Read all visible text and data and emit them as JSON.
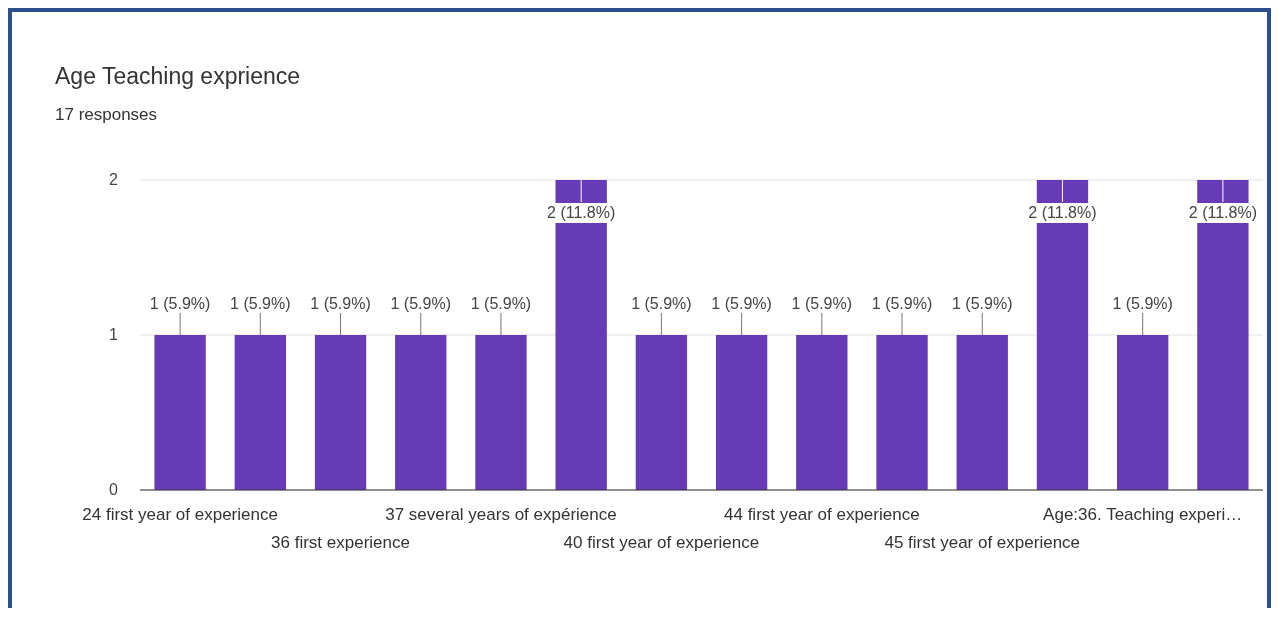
{
  "chart_data": {
    "type": "bar",
    "title": "Age Teaching exprience",
    "subtitle": "17 responses",
    "categories": [
      "24 first year of experience",
      null,
      "36 first experience",
      null,
      "37 several years of expérience",
      null,
      "40 first year of experience",
      null,
      "44 first year of experience",
      null,
      "45 first year of experience",
      null,
      "Age:36. Teaching experi…",
      null
    ],
    "values": [
      1,
      1,
      1,
      1,
      1,
      2,
      1,
      1,
      1,
      1,
      1,
      2,
      1,
      2
    ],
    "value_labels": [
      "1 (5.9%)",
      "1 (5.9%)",
      "1 (5.9%)",
      "1 (5.9%)",
      "1 (5.9%)",
      "2 (11.8%)",
      "1 (5.9%)",
      "1 (5.9%)",
      "1 (5.9%)",
      "1 (5.9%)",
      "1 (5.9%)",
      "2 (11.8%)",
      "1 (5.9%)",
      "2 (11.8%)"
    ],
    "color": "#673ab7",
    "ylim": [
      0,
      2
    ],
    "yticks": [
      0,
      1,
      2
    ],
    "grid": "y"
  }
}
